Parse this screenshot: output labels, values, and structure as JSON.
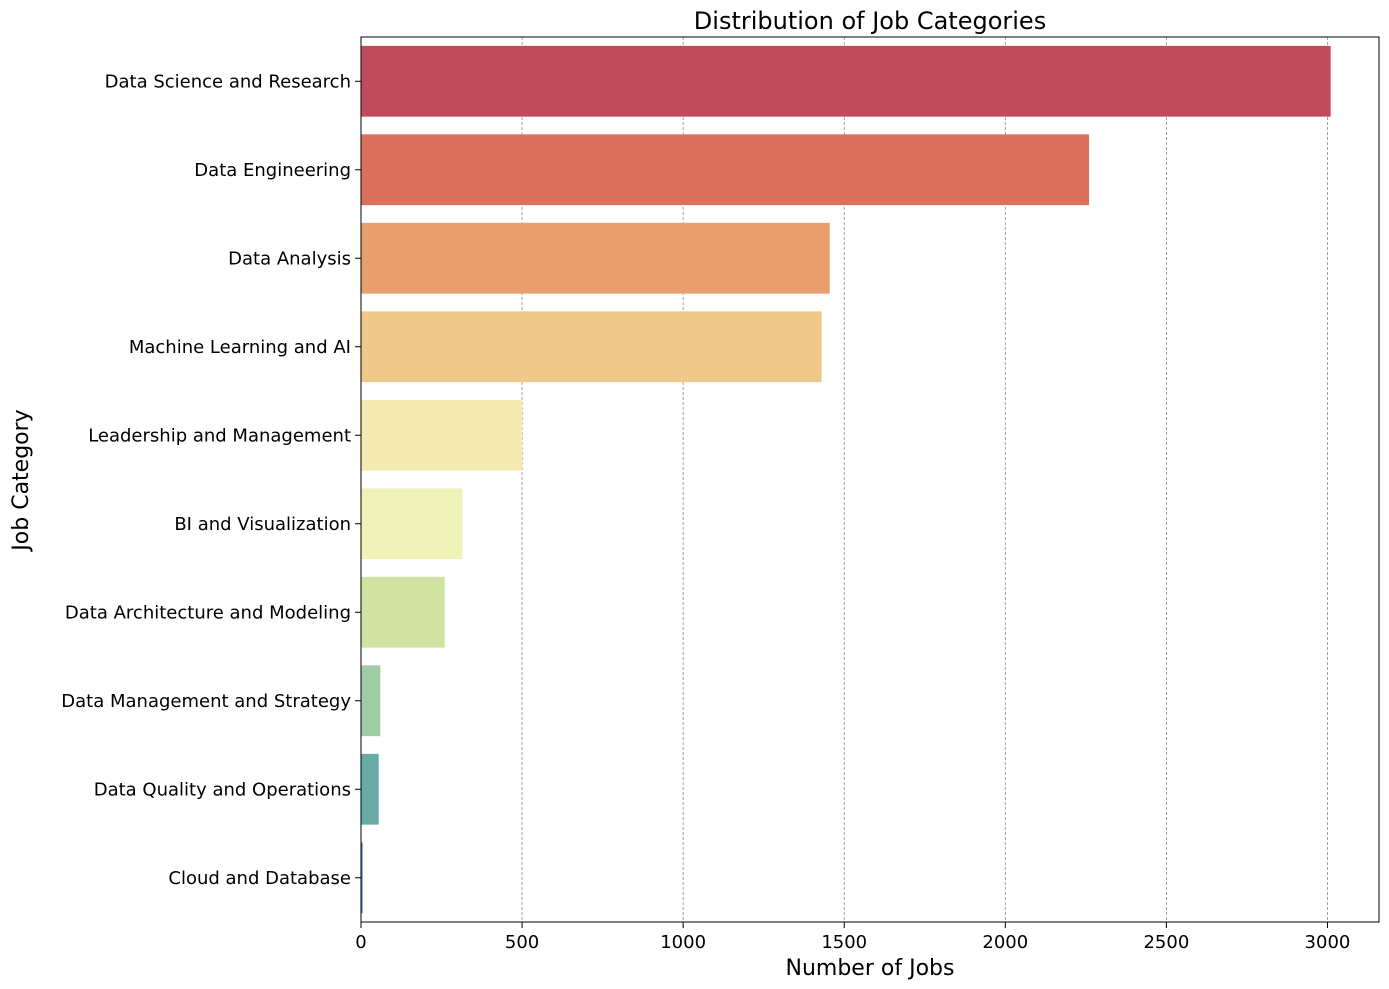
{
  "chart_data": {
    "type": "bar",
    "orientation": "horizontal",
    "title": "Distribution of Job Categories",
    "xlabel": "Number of Jobs",
    "ylabel": "Job Category",
    "xlim": [
      0,
      3160
    ],
    "xticks": [
      0,
      500,
      1000,
      1500,
      2000,
      2500,
      3000
    ],
    "grid": "x-dashed",
    "categories": [
      "Data Science and Research",
      "Data Engineering",
      "Data Analysis",
      "Machine Learning and AI",
      "Leadership and Management",
      "BI and Visualization",
      "Data Architecture and Modeling",
      "Data Management and Strategy",
      "Data Quality and Operations",
      "Cloud and Database"
    ],
    "values": [
      3010,
      2260,
      1455,
      1430,
      500,
      315,
      260,
      60,
      55,
      5
    ],
    "colors": [
      "#c04b5d",
      "#db715c",
      "#e89e6d",
      "#eec98b",
      "#f5eab0",
      "#eef2b8",
      "#d1e3a2",
      "#9fcca4",
      "#67aca4",
      "#4e7fb1"
    ]
  }
}
